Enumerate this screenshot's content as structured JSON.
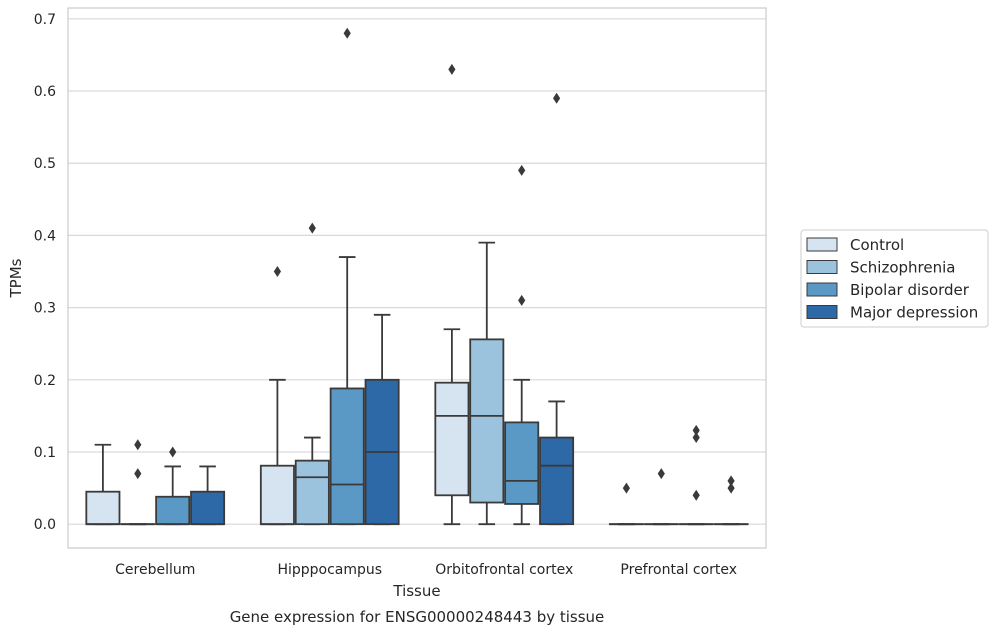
{
  "caption": "Gene expression for ENSG00000248443 by tissue",
  "chart_data": {
    "type": "box",
    "title": "",
    "xlabel": "Tissue",
    "ylabel": "TPMs",
    "ylim": [
      -0.033,
      0.715
    ],
    "yticks": [
      0.0,
      0.1,
      0.2,
      0.3,
      0.4,
      0.5,
      0.6,
      0.7
    ],
    "ytick_labels": [
      "0.0",
      "0.1",
      "0.2",
      "0.3",
      "0.4",
      "0.5",
      "0.6",
      "0.7"
    ],
    "grid": true,
    "legend_position": "right",
    "categories": [
      "Cerebellum",
      "Hipppocampus",
      "Orbitofrontal cortex",
      "Prefrontal cortex"
    ],
    "series": [
      {
        "name": "Control",
        "color": "#d6e4f1",
        "boxes": [
          {
            "q1": 0.0,
            "median": 0.0,
            "q3": 0.045,
            "whislo": 0.0,
            "whishi": 0.11,
            "fliers": []
          },
          {
            "q1": 0.0,
            "median": 0.0,
            "q3": 0.081,
            "whislo": 0.0,
            "whishi": 0.2,
            "fliers": [
              0.35
            ]
          },
          {
            "q1": 0.04,
            "median": 0.15,
            "q3": 0.196,
            "whislo": 0.0,
            "whishi": 0.27,
            "fliers": [
              0.63
            ]
          },
          {
            "q1": 0.0,
            "median": 0.0,
            "q3": 0.0,
            "whislo": 0.0,
            "whishi": 0.0,
            "fliers": [
              0.05
            ]
          }
        ]
      },
      {
        "name": "Schizophrenia",
        "color": "#9cc3dd",
        "boxes": [
          {
            "q1": 0.0,
            "median": 0.0,
            "q3": 0.0,
            "whislo": 0.0,
            "whishi": 0.0,
            "fliers": [
              0.07,
              0.11
            ]
          },
          {
            "q1": 0.0,
            "median": 0.065,
            "q3": 0.088,
            "whislo": 0.0,
            "whishi": 0.12,
            "fliers": [
              0.41
            ]
          },
          {
            "q1": 0.03,
            "median": 0.15,
            "q3": 0.256,
            "whislo": 0.0,
            "whishi": 0.39,
            "fliers": []
          },
          {
            "q1": 0.0,
            "median": 0.0,
            "q3": 0.0,
            "whislo": 0.0,
            "whishi": 0.0,
            "fliers": [
              0.07
            ]
          }
        ]
      },
      {
        "name": "Bipolar disorder",
        "color": "#5a98c6",
        "boxes": [
          {
            "q1": 0.0,
            "median": 0.0,
            "q3": 0.038,
            "whislo": 0.0,
            "whishi": 0.08,
            "fliers": [
              0.1
            ]
          },
          {
            "q1": 0.0,
            "median": 0.055,
            "q3": 0.188,
            "whislo": 0.0,
            "whishi": 0.37,
            "fliers": [
              0.68
            ]
          },
          {
            "q1": 0.028,
            "median": 0.06,
            "q3": 0.141,
            "whislo": 0.0,
            "whishi": 0.2,
            "fliers": [
              0.31,
              0.49
            ]
          },
          {
            "q1": 0.0,
            "median": 0.0,
            "q3": 0.0,
            "whislo": 0.0,
            "whishi": 0.0,
            "fliers": [
              0.04,
              0.12,
              0.13
            ]
          }
        ]
      },
      {
        "name": "Major depression",
        "color": "#2d68a7",
        "boxes": [
          {
            "q1": 0.0,
            "median": 0.0,
            "q3": 0.045,
            "whislo": 0.0,
            "whishi": 0.08,
            "fliers": []
          },
          {
            "q1": 0.0,
            "median": 0.1,
            "q3": 0.2,
            "whislo": 0.0,
            "whishi": 0.29,
            "fliers": []
          },
          {
            "q1": 0.0,
            "median": 0.081,
            "q3": 0.12,
            "whislo": 0.0,
            "whishi": 0.17,
            "fliers": [
              0.59
            ]
          },
          {
            "q1": 0.0,
            "median": 0.0,
            "q3": 0.0,
            "whislo": 0.0,
            "whishi": 0.0,
            "fliers": [
              0.05,
              0.06
            ]
          }
        ]
      }
    ]
  }
}
